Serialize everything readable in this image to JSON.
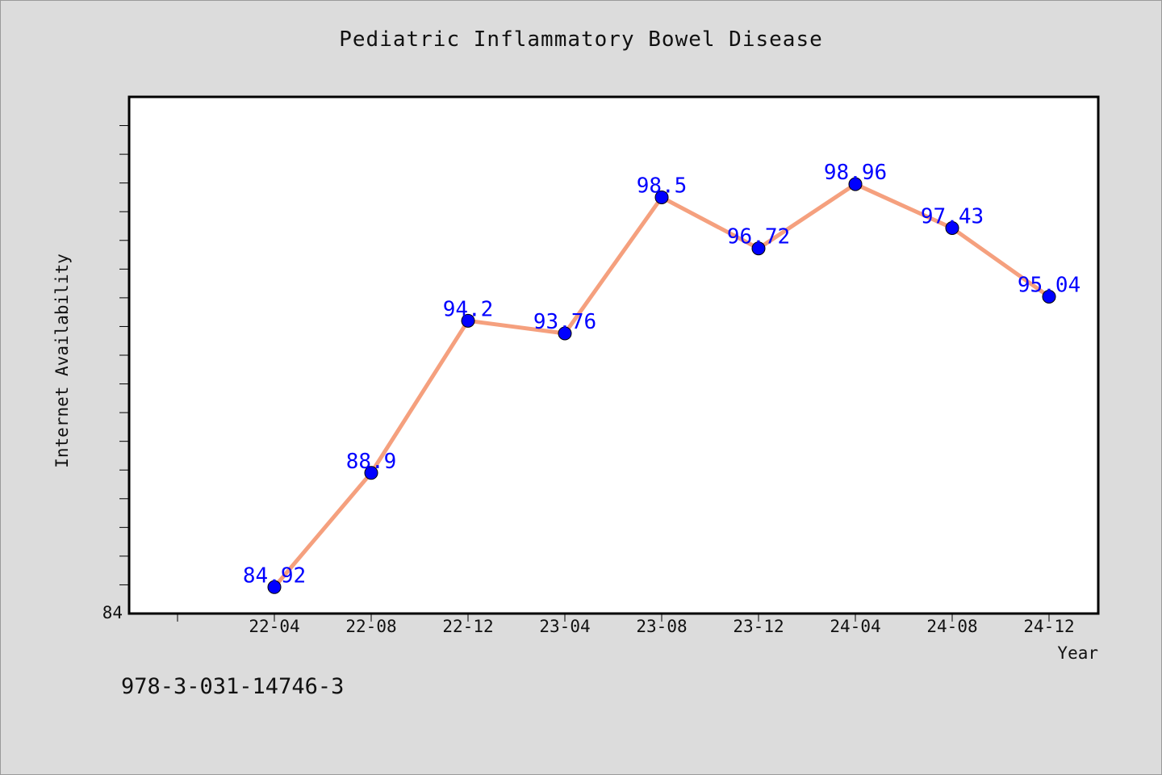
{
  "page": {
    "title": "Pediatric Inflammatory Bowel Disease",
    "footer_text": "978-3-031-14746-3"
  },
  "colors": {
    "background": "#dcdcdc",
    "plot_background": "#ffffff",
    "line": "#f5a07e",
    "marker": "#0000ff",
    "data_label": "#0000ff"
  },
  "chart_data": {
    "type": "line",
    "title": "Pediatric Inflammatory Bowel Disease",
    "xlabel": "Year",
    "ylabel": "Internet Availability",
    "categories": [
      "22-04",
      "22-08",
      "22-12",
      "23-04",
      "23-08",
      "23-12",
      "24-04",
      "24-08",
      "24-12"
    ],
    "series": [
      {
        "values": [
          84.92,
          88.9,
          94.2,
          93.76,
          98.5,
          96.72,
          98.96,
          97.43,
          95.04
        ]
      }
    ],
    "data_labels": [
      "84.92",
      "88.9",
      "94.2",
      "93.76",
      "98.5",
      "96.72",
      "98.96",
      "97.43",
      "95.04"
    ],
    "ylim": [
      84,
      102
    ],
    "y_tick_labels": [
      "84"
    ],
    "grid": false,
    "legend": "none"
  }
}
